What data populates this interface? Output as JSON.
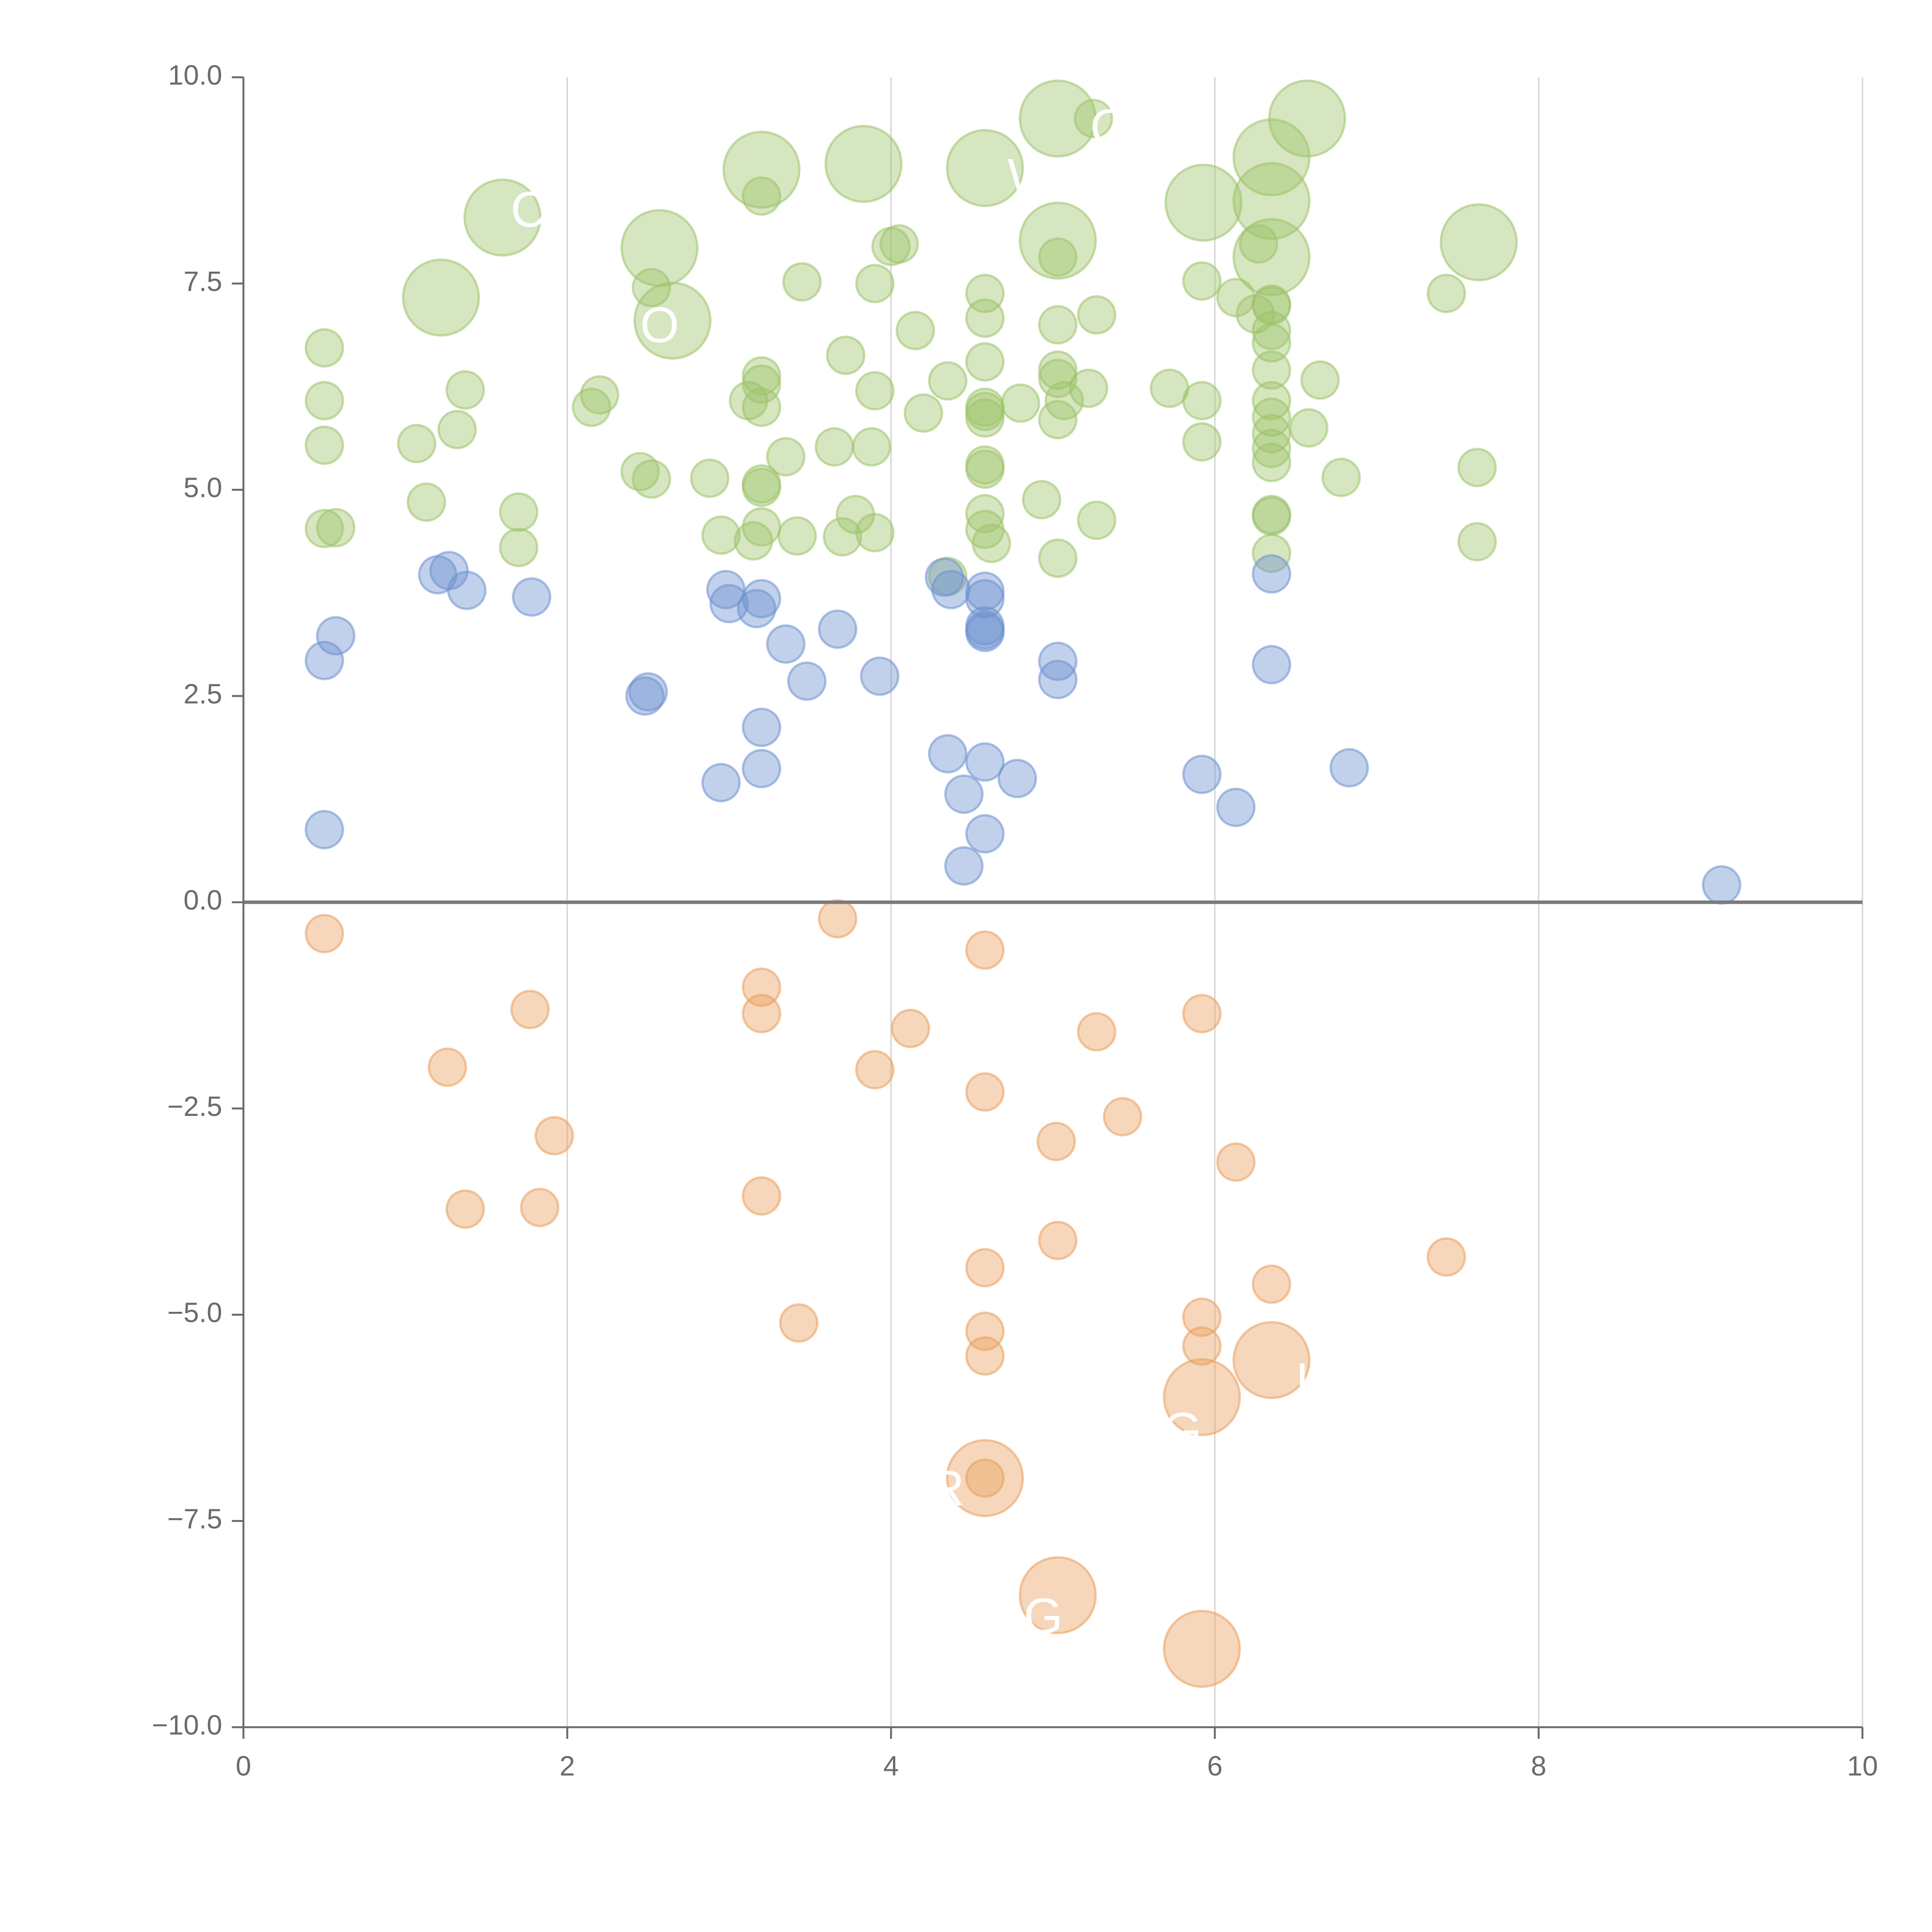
{
  "chart_data": {
    "type": "scatter",
    "title": "",
    "xlabel": "",
    "ylabel": "",
    "xlim": [
      0,
      10
    ],
    "ylim": [
      -10,
      10
    ],
    "x_ticks": [
      0,
      2,
      4,
      6,
      8,
      10
    ],
    "x_tick_labels": [
      "0",
      "2",
      "4",
      "6",
      "8",
      "10"
    ],
    "y_ticks": [
      10,
      7.5,
      5,
      2.5,
      0,
      -2.5,
      -5,
      -7.5,
      -10
    ],
    "y_tick_labels": [
      "10.0",
      "7.5",
      "5.0",
      "2.5",
      "0.0",
      "−2.5",
      "−5.0",
      "−7.5",
      "−10.0"
    ],
    "grid": "vertical",
    "zero_line": 0,
    "colors": {
      "green": "#9dc36a",
      "blue": "#6d92cf",
      "orange": "#ea9f5e",
      "axis": "#6b6b6b",
      "grid": "#d9d9d9",
      "zero_line": "#7a7a7a",
      "label": "#ffffff"
    },
    "size_scale": {
      "small": 1,
      "large": 2
    },
    "series": [
      {
        "name": "green",
        "color": "#9dc36a",
        "points": [
          [
            0.5,
            6.72,
            1
          ],
          [
            0.5,
            6.08,
            1
          ],
          [
            0.5,
            5.54,
            1
          ],
          [
            0.5,
            4.53,
            1
          ],
          [
            0.57,
            4.54,
            1
          ],
          [
            1.07,
            5.56,
            1
          ],
          [
            1.13,
            4.85,
            1
          ],
          [
            1.32,
            5.73,
            1
          ],
          [
            1.37,
            6.21,
            1
          ],
          [
            1.7,
            4.73,
            1
          ],
          [
            1.7,
            4.3,
            1
          ],
          [
            2.15,
            6.0,
            1
          ],
          [
            2.2,
            6.15,
            1
          ],
          [
            2.45,
            5.22,
            1
          ],
          [
            2.52,
            5.13,
            1
          ],
          [
            2.52,
            7.45,
            1
          ],
          [
            2.88,
            5.14,
            1
          ],
          [
            2.95,
            4.45,
            1
          ],
          [
            3.12,
            6.08,
            1
          ],
          [
            3.15,
            4.38,
            1
          ],
          [
            3.2,
            6.38,
            1
          ],
          [
            3.2,
            6.28,
            1
          ],
          [
            3.2,
            6.0,
            1
          ],
          [
            3.2,
            5.03,
            1
          ],
          [
            3.2,
            5.07,
            1
          ],
          [
            3.2,
            4.55,
            1
          ],
          [
            3.2,
            8.56,
            1
          ],
          [
            3.35,
            5.4,
            1
          ],
          [
            3.42,
            4.44,
            1
          ],
          [
            3.45,
            7.52,
            1
          ],
          [
            3.65,
            5.52,
            1
          ],
          [
            3.72,
            6.63,
            1
          ],
          [
            3.7,
            4.43,
            1
          ],
          [
            3.78,
            4.7,
            1
          ],
          [
            3.88,
            5.52,
            1
          ],
          [
            3.9,
            7.5,
            1
          ],
          [
            3.9,
            6.2,
            1
          ],
          [
            3.9,
            4.48,
            1
          ],
          [
            4.0,
            7.95,
            1
          ],
          [
            4.05,
            7.98,
            1
          ],
          [
            4.15,
            6.93,
            1
          ],
          [
            4.2,
            5.93,
            1
          ],
          [
            4.35,
            6.32,
            1
          ],
          [
            4.35,
            3.95,
            1
          ],
          [
            4.58,
            7.38,
            1
          ],
          [
            4.58,
            7.08,
            1
          ],
          [
            4.58,
            6.55,
            1
          ],
          [
            4.58,
            6.0,
            1
          ],
          [
            4.58,
            5.95,
            1
          ],
          [
            4.58,
            5.87,
            1
          ],
          [
            4.58,
            5.3,
            1
          ],
          [
            4.58,
            5.25,
            1
          ],
          [
            4.58,
            4.71,
            1
          ],
          [
            4.58,
            4.52,
            1
          ],
          [
            4.62,
            4.35,
            1
          ],
          [
            4.8,
            6.05,
            1
          ],
          [
            4.93,
            4.88,
            1
          ],
          [
            5.03,
            7.0,
            1
          ],
          [
            5.03,
            6.45,
            1
          ],
          [
            5.03,
            6.35,
            1
          ],
          [
            5.03,
            5.85,
            1
          ],
          [
            5.03,
            4.17,
            1
          ],
          [
            5.03,
            7.82,
            1
          ],
          [
            5.07,
            6.08,
            1
          ],
          [
            5.22,
            6.23,
            1
          ],
          [
            5.27,
            7.12,
            1
          ],
          [
            5.27,
            4.63,
            1
          ],
          [
            5.25,
            9.5,
            1
          ],
          [
            5.72,
            6.23,
            1
          ],
          [
            5.92,
            7.53,
            1
          ],
          [
            5.92,
            6.08,
            1
          ],
          [
            5.92,
            5.58,
            1
          ],
          [
            6.13,
            7.33,
            1
          ],
          [
            6.25,
            7.13,
            1
          ],
          [
            6.27,
            7.98,
            1
          ],
          [
            6.35,
            7.25,
            1
          ],
          [
            6.35,
            7.23,
            1
          ],
          [
            6.35,
            6.93,
            1
          ],
          [
            6.35,
            6.78,
            1
          ],
          [
            6.35,
            6.45,
            1
          ],
          [
            6.35,
            6.08,
            1
          ],
          [
            6.35,
            5.88,
            1
          ],
          [
            6.35,
            5.68,
            1
          ],
          [
            6.35,
            5.5,
            1
          ],
          [
            6.35,
            5.33,
            1
          ],
          [
            6.35,
            4.7,
            1
          ],
          [
            6.35,
            4.68,
            1
          ],
          [
            6.35,
            4.23,
            1
          ],
          [
            6.58,
            5.75,
            1
          ],
          [
            6.65,
            6.33,
            1
          ],
          [
            6.78,
            5.15,
            1
          ],
          [
            7.43,
            7.38,
            1
          ],
          [
            7.62,
            5.27,
            1
          ],
          [
            7.62,
            4.37,
            1
          ],
          [
            1.22,
            7.33,
            2
          ],
          [
            1.6,
            8.3,
            2
          ],
          [
            2.57,
            7.93,
            2
          ],
          [
            2.65,
            7.05,
            2
          ],
          [
            3.2,
            8.88,
            2
          ],
          [
            3.83,
            8.95,
            2
          ],
          [
            4.58,
            8.9,
            2
          ],
          [
            5.03,
            9.5,
            2
          ],
          [
            5.03,
            8.02,
            2
          ],
          [
            5.93,
            8.48,
            2
          ],
          [
            6.35,
            9.03,
            2
          ],
          [
            6.35,
            8.5,
            2
          ],
          [
            6.35,
            7.82,
            2
          ],
          [
            6.57,
            9.5,
            2
          ],
          [
            7.63,
            8.0,
            2
          ]
        ]
      },
      {
        "name": "blue",
        "color": "#6d92cf",
        "points": [
          [
            0.5,
            2.93,
            1
          ],
          [
            0.57,
            3.23,
            1
          ],
          [
            0.5,
            0.88,
            1
          ],
          [
            1.2,
            3.97,
            1
          ],
          [
            1.27,
            4.02,
            1
          ],
          [
            1.38,
            3.78,
            1
          ],
          [
            1.78,
            3.7,
            1
          ],
          [
            2.48,
            2.5,
            1
          ],
          [
            2.5,
            2.55,
            1
          ],
          [
            2.95,
            1.45,
            1
          ],
          [
            2.98,
            3.79,
            1
          ],
          [
            3.0,
            3.62,
            1
          ],
          [
            3.2,
            3.68,
            1
          ],
          [
            3.17,
            3.56,
            1
          ],
          [
            3.2,
            2.12,
            1
          ],
          [
            3.2,
            1.62,
            1
          ],
          [
            3.35,
            3.13,
            1
          ],
          [
            3.48,
            2.68,
            1
          ],
          [
            3.67,
            3.31,
            1
          ],
          [
            3.93,
            2.74,
            1
          ],
          [
            4.33,
            3.94,
            1
          ],
          [
            4.37,
            3.79,
            1
          ],
          [
            4.35,
            1.8,
            1
          ],
          [
            4.45,
            1.31,
            1
          ],
          [
            4.45,
            0.44,
            1
          ],
          [
            4.58,
            3.77,
            1
          ],
          [
            4.58,
            3.68,
            1
          ],
          [
            4.58,
            3.35,
            1
          ],
          [
            4.58,
            3.3,
            1
          ],
          [
            4.58,
            3.27,
            1
          ],
          [
            4.58,
            1.7,
            1
          ],
          [
            4.58,
            0.83,
            1
          ],
          [
            4.78,
            1.5,
            1
          ],
          [
            5.03,
            2.92,
            1
          ],
          [
            5.03,
            2.7,
            1
          ],
          [
            5.92,
            1.55,
            1
          ],
          [
            6.13,
            1.15,
            1
          ],
          [
            6.35,
            3.98,
            1
          ],
          [
            6.35,
            2.88,
            1
          ],
          [
            6.83,
            1.63,
            1
          ],
          [
            9.13,
            0.21,
            1
          ]
        ]
      },
      {
        "name": "orange",
        "color": "#ea9f5e",
        "points": [
          [
            0.5,
            -0.38,
            1
          ],
          [
            1.26,
            -2.0,
            1
          ],
          [
            1.37,
            -3.72,
            1
          ],
          [
            1.77,
            -1.3,
            1
          ],
          [
            1.83,
            -3.7,
            1
          ],
          [
            1.92,
            -2.83,
            1
          ],
          [
            3.2,
            -1.03,
            1
          ],
          [
            3.2,
            -1.35,
            1
          ],
          [
            3.2,
            -3.56,
            1
          ],
          [
            3.43,
            -5.1,
            1
          ],
          [
            3.67,
            -0.2,
            1
          ],
          [
            3.9,
            -2.03,
            1
          ],
          [
            4.12,
            -1.53,
            1
          ],
          [
            4.58,
            -0.58,
            1
          ],
          [
            4.58,
            -2.3,
            1
          ],
          [
            4.58,
            -4.43,
            1
          ],
          [
            4.58,
            -5.2,
            1
          ],
          [
            4.58,
            -5.5,
            1
          ],
          [
            4.58,
            -6.98,
            1
          ],
          [
            5.02,
            -2.9,
            1
          ],
          [
            5.03,
            -4.1,
            1
          ],
          [
            5.27,
            -1.57,
            1
          ],
          [
            5.43,
            -2.6,
            1
          ],
          [
            5.92,
            -1.35,
            1
          ],
          [
            5.92,
            -5.03,
            1
          ],
          [
            5.92,
            -5.38,
            1
          ],
          [
            6.13,
            -3.15,
            1
          ],
          [
            6.35,
            -4.63,
            1
          ],
          [
            7.43,
            -4.3,
            1
          ],
          [
            4.58,
            -6.98,
            2
          ],
          [
            5.03,
            -8.4,
            2
          ],
          [
            5.92,
            -6.0,
            2
          ],
          [
            6.35,
            -5.55,
            2
          ],
          [
            5.92,
            -9.05,
            2
          ]
        ]
      }
    ],
    "annotations": [
      {
        "text": "C",
        "x": 1.65,
        "y": 8.35
      },
      {
        "text": "O",
        "x": 2.45,
        "y": 6.95
      },
      {
        "text": "WTC",
        "x": 4.72,
        "y": 8.75
      },
      {
        "text": "OC",
        "x": 5.23,
        "y": 9.35
      },
      {
        "text": "R",
        "x": 4.23,
        "y": -7.15
      },
      {
        "text": "G",
        "x": 5.68,
        "y": -6.45
      },
      {
        "text": "K",
        "x": 6.5,
        "y": -5.85
      },
      {
        "text": "G",
        "x": 4.82,
        "y": -8.7
      }
    ]
  }
}
